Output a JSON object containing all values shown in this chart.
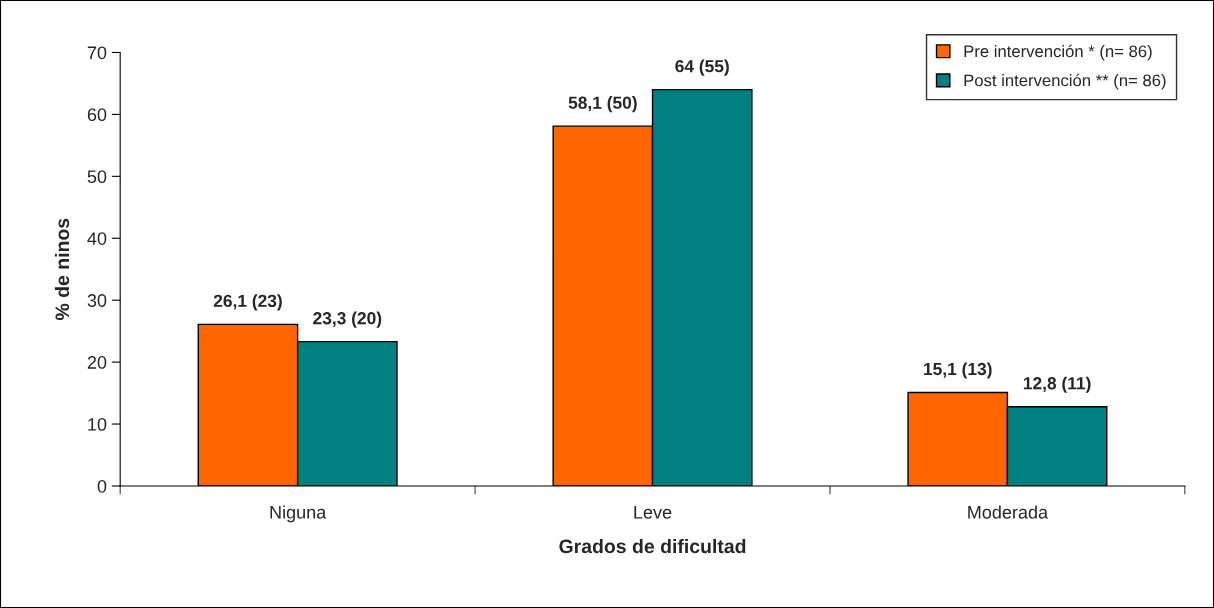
{
  "chart_data": {
    "type": "bar",
    "xlabel": "Grados de dificultad",
    "ylabel": "% de ninos",
    "categories": [
      "Niguna",
      "Leve",
      "Moderada"
    ],
    "series": [
      {
        "name": "Pre intervención * (n= 86)",
        "color": "#ff6600",
        "values": [
          26.1,
          58.1,
          15.1
        ],
        "value_labels": [
          "26,1 (23)",
          "58,1 (50)",
          "15,1 (13)"
        ]
      },
      {
        "name": "Post intervención ** (n= 86)",
        "color": "#008080",
        "values": [
          23.3,
          64,
          12.8
        ],
        "value_labels": [
          "23,3 (20)",
          "64 (55)",
          "12,8 (11)"
        ]
      }
    ],
    "ylim": [
      0,
      70
    ],
    "yticks": [
      0,
      10,
      20,
      30,
      40,
      50,
      60,
      70
    ],
    "grid": false,
    "legend": "top right"
  }
}
